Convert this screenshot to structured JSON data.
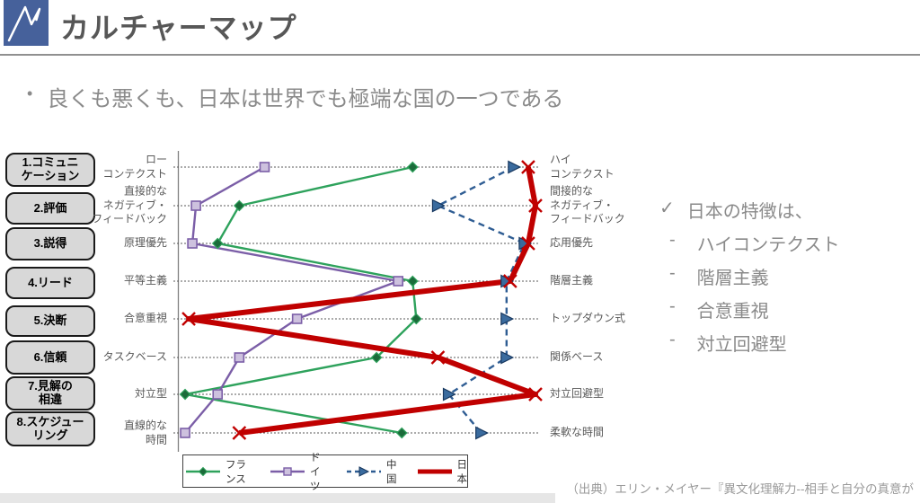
{
  "header": {
    "title": "カルチャーマップ",
    "logo_color": "#46619B"
  },
  "bullet": {
    "marker": "•",
    "text": "良くも悪くも、日本は世界でも極端な国の一つである"
  },
  "sidebar": {
    "items": [
      {
        "label": "1.コミュニ\nケーション"
      },
      {
        "label": "2.評価"
      },
      {
        "label": "3.説得"
      },
      {
        "label": "4.リード"
      },
      {
        "label": "5.決断"
      },
      {
        "label": "6.信頼"
      },
      {
        "label": "7.見解の\n相違"
      },
      {
        "label": "8.スケジュー\nリング"
      }
    ]
  },
  "chart_data": {
    "type": "line",
    "layout": "horizontal-dimension-rows",
    "x_range": [
      0,
      100
    ],
    "grid": "dotted-row-lines",
    "legend_position": "bottom",
    "rows": [
      {
        "left": "ロー\nコンテクスト",
        "right": "ハイ\nコンテクスト"
      },
      {
        "left": "直接的な\nネガティブ・\nフィードバック",
        "right": "間接的な\nネガティブ・\nフィードバック"
      },
      {
        "left": "原理優先",
        "right": "応用優先"
      },
      {
        "left": "平等主義",
        "right": "階層主義"
      },
      {
        "left": "合意重視",
        "right": "トップダウン式"
      },
      {
        "left": "タスクベース",
        "right": "関係ベース"
      },
      {
        "left": "対立型",
        "right": "対立回避型"
      },
      {
        "left": "直線的な\n時間",
        "right": "柔軟な時間"
      }
    ],
    "series": [
      {
        "name": "フランス",
        "color": "#2EA25C",
        "marker_color": "#1B6B3A",
        "marker": "diamond",
        "line_style": "solid",
        "line_width": 2.4,
        "values": [
          65,
          17,
          11,
          65,
          66,
          55,
          2,
          62
        ]
      },
      {
        "name": "ドイツ",
        "color": "#7B5EA7",
        "marker_color": "#CDC1DE",
        "marker": "square",
        "line_style": "solid",
        "line_width": 2.4,
        "values": [
          24,
          5,
          4,
          61,
          33,
          17,
          11,
          2
        ]
      },
      {
        "name": "中国",
        "color": "#2F5D93",
        "marker_color": "#3A6B9E",
        "marker": "triangle-right",
        "line_style": "dashed",
        "line_width": 2.4,
        "values": [
          93,
          72,
          96,
          91,
          91,
          91,
          75,
          84
        ]
      },
      {
        "name": "日本",
        "color": "#C00000",
        "marker_color": "#C00000",
        "marker": "x",
        "line_style": "solid",
        "line_width": 6,
        "values": [
          97,
          99,
          97,
          92,
          3,
          72,
          99,
          17
        ]
      }
    ]
  },
  "right_panel": {
    "check_icon": "✓",
    "title": "日本の特徴は、",
    "items": [
      {
        "dash": "-",
        "label": "ハイコンテクスト"
      },
      {
        "dash": "-",
        "label": "階層主義"
      },
      {
        "dash": "-",
        "label": "合意重視"
      },
      {
        "dash": "-",
        "label": "対立回避型"
      }
    ]
  },
  "citation": {
    "text": "（出典）エリン・メイヤー『異文化理解力--相手と自分の真意が"
  }
}
